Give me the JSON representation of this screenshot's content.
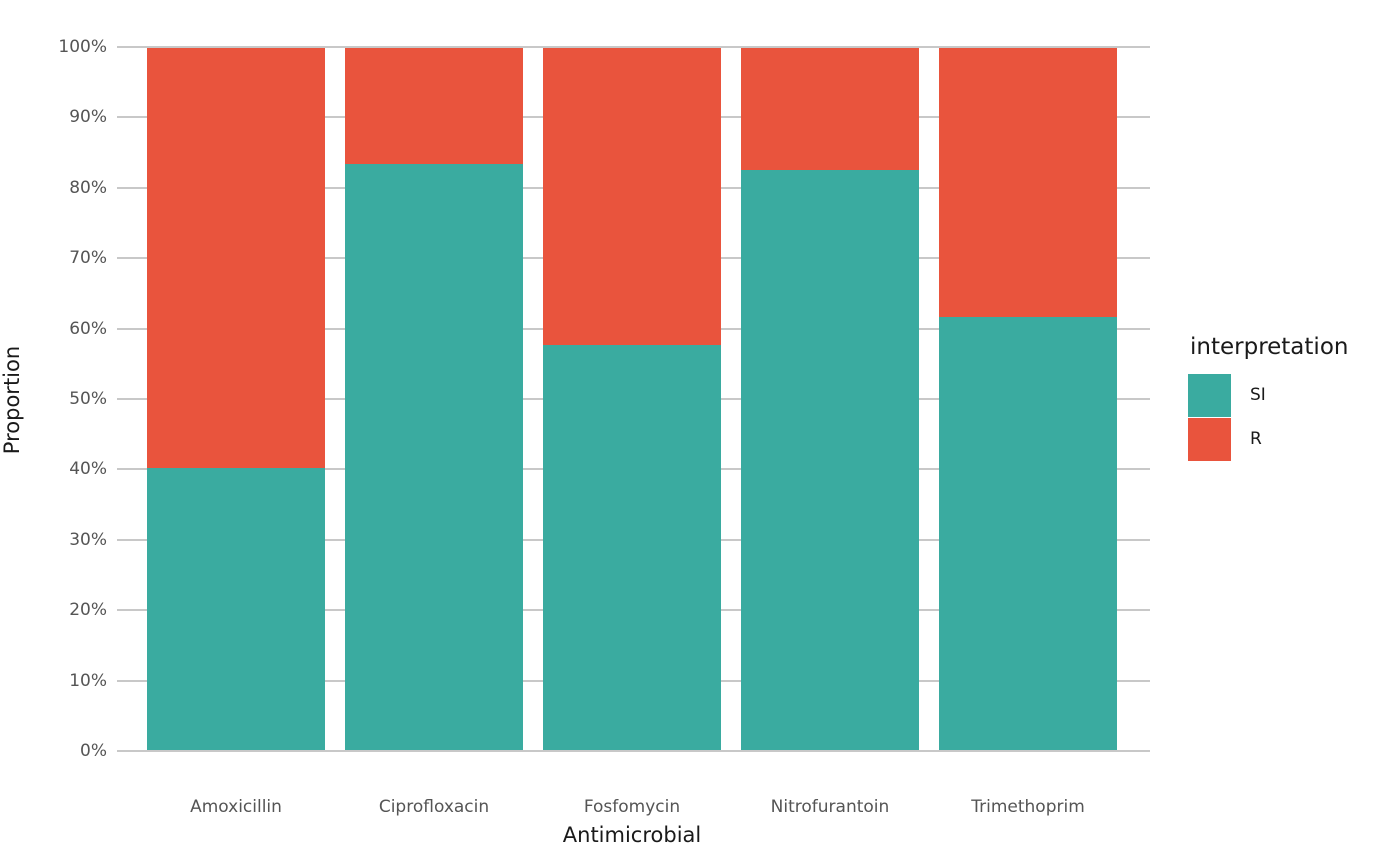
{
  "chart_data": {
    "type": "bar",
    "variant": "stacked-percent",
    "title": "",
    "xlabel": "Antimicrobial",
    "ylabel": "Proportion",
    "categories": [
      "Amoxicillin",
      "Ciprofloxacin",
      "Fosfomycin",
      "Nitrofurantoin",
      "Trimethoprim"
    ],
    "series": [
      {
        "name": "SI",
        "color": "#3aaba0",
        "values": [
          40.2,
          83.5,
          57.7,
          82.6,
          61.7
        ]
      },
      {
        "name": "R",
        "color": "#e9543d",
        "values": [
          59.8,
          16.5,
          42.3,
          17.4,
          38.3
        ]
      }
    ],
    "ylim": [
      0,
      100
    ],
    "y_tick_labels": [
      "0%",
      "10%",
      "20%",
      "30%",
      "40%",
      "50%",
      "60%",
      "70%",
      "80%",
      "90%",
      "100%"
    ],
    "grid": true,
    "legend": {
      "title": "interpretation",
      "position": "right",
      "entries": [
        "SI",
        "R"
      ]
    }
  },
  "styles": {
    "background": "#ffffff",
    "grid_color": "#c8c8c8",
    "tick_label_color": "#555555",
    "axis_title_color": "#1a1a1a",
    "legend_text_color": "#1a1a1a"
  }
}
